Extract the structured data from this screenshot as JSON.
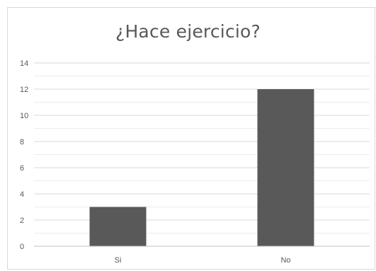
{
  "chart_data": {
    "type": "bar",
    "title": "¿Hace ejercicio?",
    "categories": [
      "Si",
      "No"
    ],
    "values": [
      3,
      12
    ],
    "ylim": [
      0,
      14
    ],
    "y_ticks": [
      "0",
      "2",
      "4",
      "6",
      "8",
      "10",
      "12",
      "14"
    ],
    "xlabel": "",
    "ylabel": "",
    "grid": true,
    "bar_color": "#595959",
    "gridline_color": "#d9d9d9"
  }
}
